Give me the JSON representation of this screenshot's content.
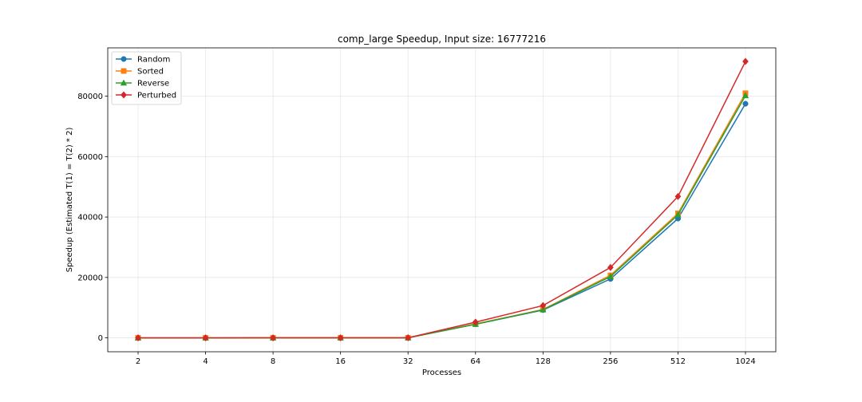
{
  "chart_data": {
    "type": "line",
    "title": "comp_large Speedup, Input size: 16777216",
    "xlabel": "Processes",
    "ylabel": "Speedup (Estimated T(1) = T(2) * 2)",
    "categories": [
      "2",
      "4",
      "8",
      "16",
      "32",
      "64",
      "128",
      "256",
      "512",
      "1024"
    ],
    "ylim": [
      -4600,
      96000
    ],
    "yticks": [
      0,
      20000,
      40000,
      60000,
      80000
    ],
    "grid": true,
    "legend_position": "top-left",
    "series": [
      {
        "name": "Random",
        "color": "#1f77b4",
        "marker": "circle",
        "values": [
          2,
          4,
          8,
          16,
          32,
          4500,
          9200,
          19500,
          39500,
          77500
        ]
      },
      {
        "name": "Sorted",
        "color": "#ff7f0e",
        "marker": "square",
        "values": [
          2,
          4,
          8,
          16,
          32,
          4600,
          9400,
          20700,
          41200,
          81000
        ]
      },
      {
        "name": "Reverse",
        "color": "#2ca02c",
        "marker": "triangle",
        "values": [
          2,
          4,
          8,
          16,
          32,
          4500,
          9300,
          20300,
          40700,
          80200
        ]
      },
      {
        "name": "Perturbed",
        "color": "#d62728",
        "marker": "diamond",
        "values": [
          2,
          4,
          8,
          16,
          32,
          5200,
          10700,
          23300,
          46800,
          91500
        ]
      }
    ]
  }
}
